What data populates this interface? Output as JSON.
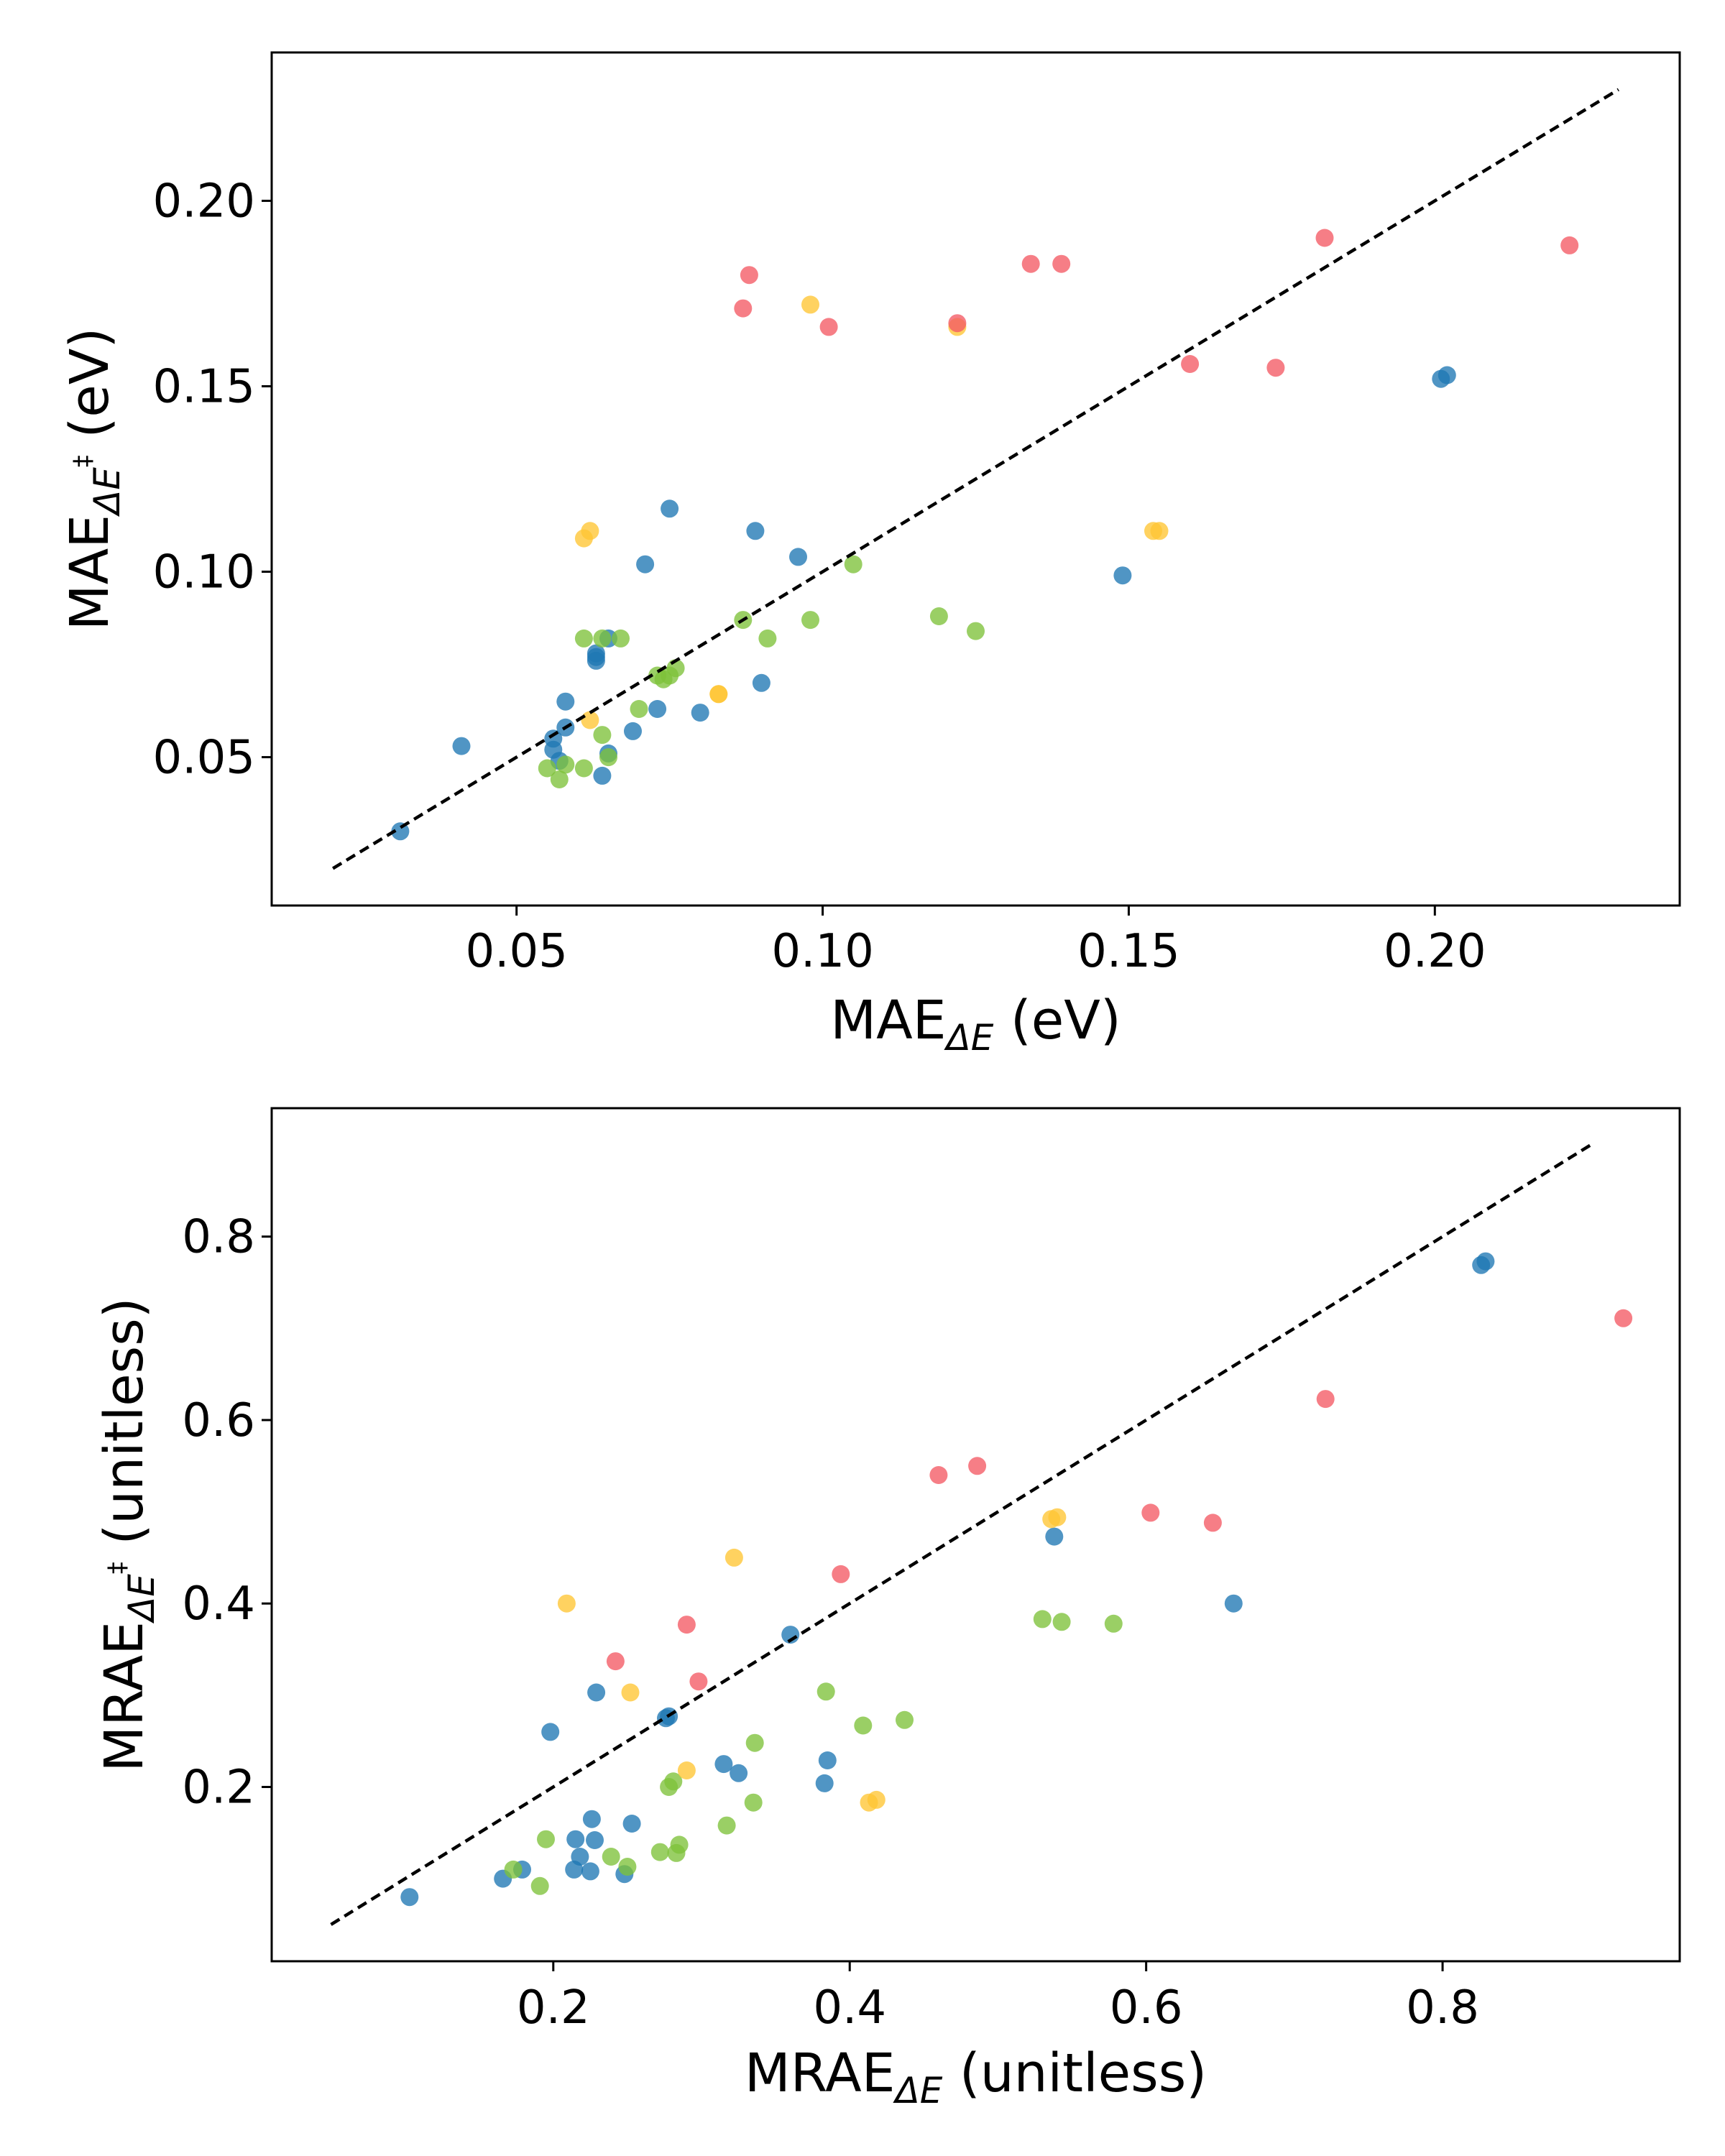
{
  "colors": {
    "blue": "#1f77b4",
    "green": "#7dc13a",
    "yellow": "#ffc533",
    "red": "#f45a64"
  },
  "chart_data": [
    {
      "type": "scatter",
      "title": "",
      "xlabel": {
        "main": "MAE",
        "sub": "ΔE",
        "sup": "",
        "unit": " (eV)"
      },
      "ylabel": {
        "main": "MAE",
        "sub": "ΔE",
        "sup": "‡",
        "unit": " (eV)"
      },
      "xlim": [
        0.01,
        0.24
      ],
      "ylim": [
        0.01,
        0.24
      ],
      "xticks": [
        0.05,
        0.1,
        0.15,
        0.2
      ],
      "xtick_labels": [
        "0.05",
        "0.10",
        "0.15",
        "0.20"
      ],
      "yticks": [
        0.05,
        0.1,
        0.15,
        0.2
      ],
      "ytick_labels": [
        "0.05",
        "0.10",
        "0.15",
        "0.20"
      ],
      "grid": false,
      "diagonal": [
        0.02,
        0.23
      ],
      "series": [
        {
          "color": "blue",
          "points": [
            [
              0.031,
              0.03
            ],
            [
              0.041,
              0.053
            ],
            [
              0.056,
              0.052
            ],
            [
              0.056,
              0.055
            ],
            [
              0.057,
              0.049
            ],
            [
              0.058,
              0.058
            ],
            [
              0.058,
              0.065
            ],
            [
              0.063,
              0.076
            ],
            [
              0.063,
              0.077
            ],
            [
              0.063,
              0.078
            ],
            [
              0.064,
              0.045
            ],
            [
              0.065,
              0.082
            ],
            [
              0.065,
              0.051
            ],
            [
              0.069,
              0.057
            ],
            [
              0.071,
              0.102
            ],
            [
              0.073,
              0.063
            ],
            [
              0.075,
              0.117
            ],
            [
              0.08,
              0.062
            ],
            [
              0.089,
              0.111
            ],
            [
              0.09,
              0.07
            ],
            [
              0.096,
              0.104
            ],
            [
              0.149,
              0.099
            ],
            [
              0.201,
              0.152
            ],
            [
              0.202,
              0.153
            ]
          ]
        },
        {
          "color": "green",
          "points": [
            [
              0.055,
              0.047
            ],
            [
              0.057,
              0.044
            ],
            [
              0.058,
              0.048
            ],
            [
              0.061,
              0.047
            ],
            [
              0.061,
              0.082
            ],
            [
              0.064,
              0.082
            ],
            [
              0.064,
              0.056
            ],
            [
              0.065,
              0.05
            ],
            [
              0.067,
              0.082
            ],
            [
              0.07,
              0.063
            ],
            [
              0.073,
              0.072
            ],
            [
              0.074,
              0.071
            ],
            [
              0.075,
              0.072
            ],
            [
              0.076,
              0.074
            ],
            [
              0.087,
              0.087
            ],
            [
              0.091,
              0.082
            ],
            [
              0.098,
              0.087
            ],
            [
              0.105,
              0.102
            ],
            [
              0.119,
              0.088
            ],
            [
              0.125,
              0.084
            ]
          ]
        },
        {
          "color": "yellow",
          "points": [
            [
              0.061,
              0.109
            ],
            [
              0.062,
              0.111
            ],
            [
              0.062,
              0.06
            ],
            [
              0.083,
              0.067
            ],
            [
              0.083,
              0.067
            ],
            [
              0.098,
              0.172
            ],
            [
              0.122,
              0.166
            ],
            [
              0.154,
              0.111
            ],
            [
              0.155,
              0.111
            ]
          ]
        },
        {
          "color": "red",
          "points": [
            [
              0.087,
              0.171
            ],
            [
              0.088,
              0.18
            ],
            [
              0.101,
              0.166
            ],
            [
              0.122,
              0.167
            ],
            [
              0.134,
              0.183
            ],
            [
              0.139,
              0.183
            ],
            [
              0.16,
              0.156
            ],
            [
              0.174,
              0.155
            ],
            [
              0.182,
              0.19
            ],
            [
              0.222,
              0.188
            ]
          ]
        }
      ]
    },
    {
      "type": "scatter",
      "title": "",
      "xlabel": {
        "main": "MRAE",
        "sub": "ΔE",
        "sup": "",
        "unit": " (unitless)"
      },
      "ylabel": {
        "main": "MRAE",
        "sub": "ΔE",
        "sup": "‡",
        "unit": " (unitless)"
      },
      "xlim": [
        0.01,
        0.96
      ],
      "ylim": [
        0.01,
        0.94
      ],
      "xticks": [
        0.2,
        0.4,
        0.6,
        0.8
      ],
      "xtick_labels": [
        "0.2",
        "0.4",
        "0.6",
        "0.8"
      ],
      "yticks": [
        0.2,
        0.4,
        0.6,
        0.8
      ],
      "ytick_labels": [
        "0.2",
        "0.4",
        "0.6",
        "0.8"
      ],
      "grid": false,
      "diagonal": [
        0.05,
        0.9
      ],
      "series": [
        {
          "color": "blue",
          "points": [
            [
              0.103,
              0.08
            ],
            [
              0.166,
              0.1
            ],
            [
              0.179,
              0.11
            ],
            [
              0.198,
              0.26
            ],
            [
              0.214,
              0.11
            ],
            [
              0.215,
              0.143
            ],
            [
              0.218,
              0.124
            ],
            [
              0.225,
              0.108
            ],
            [
              0.226,
              0.165
            ],
            [
              0.228,
              0.142
            ],
            [
              0.229,
              0.303
            ],
            [
              0.248,
              0.105
            ],
            [
              0.253,
              0.16
            ],
            [
              0.276,
              0.275
            ],
            [
              0.278,
              0.277
            ],
            [
              0.315,
              0.225
            ],
            [
              0.325,
              0.215
            ],
            [
              0.36,
              0.366
            ],
            [
              0.383,
              0.204
            ],
            [
              0.385,
              0.229
            ],
            [
              0.538,
              0.473
            ],
            [
              0.659,
              0.4
            ],
            [
              0.826,
              0.769
            ],
            [
              0.829,
              0.773
            ]
          ]
        },
        {
          "color": "green",
          "points": [
            [
              0.173,
              0.11
            ],
            [
              0.191,
              0.092
            ],
            [
              0.195,
              0.143
            ],
            [
              0.239,
              0.124
            ],
            [
              0.25,
              0.113
            ],
            [
              0.272,
              0.129
            ],
            [
              0.278,
              0.2
            ],
            [
              0.281,
              0.206
            ],
            [
              0.283,
              0.128
            ],
            [
              0.285,
              0.137
            ],
            [
              0.317,
              0.158
            ],
            [
              0.335,
              0.183
            ],
            [
              0.336,
              0.248
            ],
            [
              0.384,
              0.304
            ],
            [
              0.409,
              0.267
            ],
            [
              0.437,
              0.273
            ],
            [
              0.53,
              0.383
            ],
            [
              0.543,
              0.38
            ],
            [
              0.578,
              0.378
            ]
          ]
        },
        {
          "color": "yellow",
          "points": [
            [
              0.209,
              0.4
            ],
            [
              0.252,
              0.303
            ],
            [
              0.29,
              0.218
            ],
            [
              0.322,
              0.45
            ],
            [
              0.413,
              0.183
            ],
            [
              0.418,
              0.186
            ],
            [
              0.536,
              0.492
            ],
            [
              0.54,
              0.494
            ]
          ]
        },
        {
          "color": "red",
          "points": [
            [
              0.242,
              0.337
            ],
            [
              0.29,
              0.377
            ],
            [
              0.298,
              0.315
            ],
            [
              0.394,
              0.432
            ],
            [
              0.46,
              0.54
            ],
            [
              0.486,
              0.55
            ],
            [
              0.603,
              0.499
            ],
            [
              0.645,
              0.488
            ],
            [
              0.721,
              0.623
            ],
            [
              0.922,
              0.711
            ]
          ]
        }
      ]
    }
  ]
}
